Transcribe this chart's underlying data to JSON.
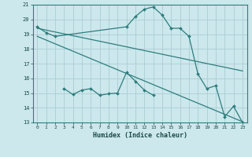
{
  "xlabel": "Humidex (Indice chaleur)",
  "xlim": [
    -0.5,
    23.5
  ],
  "ylim": [
    13,
    21
  ],
  "yticks": [
    13,
    14,
    15,
    16,
    17,
    18,
    19,
    20,
    21
  ],
  "xticks": [
    0,
    1,
    2,
    3,
    4,
    5,
    6,
    7,
    8,
    9,
    10,
    11,
    12,
    13,
    14,
    15,
    16,
    17,
    18,
    19,
    20,
    21,
    22,
    23
  ],
  "bg_color": "#cce8ec",
  "grid_color": "#aacdd4",
  "line_color": "#2e7d7d",
  "line1_x": [
    0,
    1,
    2,
    10,
    11,
    12,
    13,
    14,
    15,
    16,
    17,
    18,
    19,
    20,
    21,
    22,
    23
  ],
  "line1_y": [
    19.5,
    19.1,
    18.85,
    19.5,
    20.2,
    20.7,
    20.85,
    20.3,
    19.4,
    19.4,
    18.85,
    16.3,
    15.3,
    15.5,
    13.4,
    14.1,
    13.0
  ],
  "line2_x": [
    0,
    23
  ],
  "line2_y": [
    19.4,
    16.5
  ],
  "line3_x": [
    0,
    23
  ],
  "line3_y": [
    18.85,
    13.05
  ],
  "line4_x": [
    3,
    4,
    5,
    6,
    7,
    8,
    9,
    10,
    11,
    12,
    13
  ],
  "line4_y": [
    15.3,
    14.9,
    15.2,
    15.3,
    14.85,
    14.95,
    15.0,
    16.4,
    15.8,
    15.2,
    14.85
  ]
}
